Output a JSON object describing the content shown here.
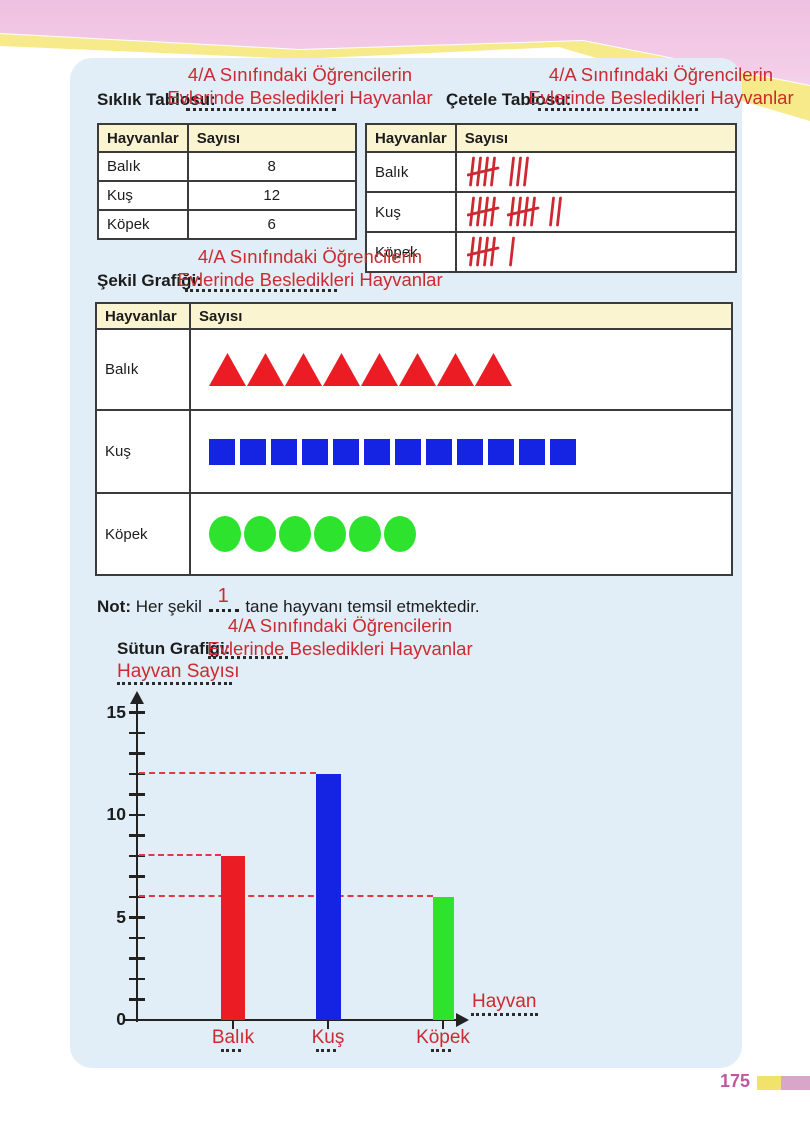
{
  "page": {
    "red_title_line1": "4/A Sınıfındaki Öğrencilerin",
    "red_title_line2": "Evlerinde Besledikleri Hayvanlar"
  },
  "sections": {
    "frequency_label": "Sıklık Tablosu:",
    "tally_label": "Çetele Tablosu:",
    "pictograph_label": "Şekil Grafiği:",
    "bar_label": "Sütun Grafiği:"
  },
  "table_headers": {
    "animals": "Hayvanlar",
    "count": "Sayısı"
  },
  "frequency_table": {
    "rows": [
      {
        "animal": "Balık",
        "value": "8"
      },
      {
        "animal": "Kuş",
        "value": "12"
      },
      {
        "animal": "Köpek",
        "value": "6"
      }
    ]
  },
  "tally_table": {
    "rows": [
      {
        "animal": "Balık",
        "count": 8,
        "groups": [
          5,
          3
        ]
      },
      {
        "animal": "Kuş",
        "count": 12,
        "groups": [
          5,
          5,
          2
        ]
      },
      {
        "animal": "Köpek",
        "count": 6,
        "groups": [
          5,
          1
        ]
      }
    ]
  },
  "pictograph": {
    "rows": [
      {
        "animal": "Balık",
        "shape": "triangle",
        "color": "#ec1c24",
        "count": 8
      },
      {
        "animal": "Kuş",
        "shape": "square",
        "color": "#1523e2",
        "count": 12
      },
      {
        "animal": "Köpek",
        "shape": "circle",
        "color": "#2de32d",
        "count": 6
      }
    ]
  },
  "note": {
    "prefix": "Not:",
    "before": "Her şekil",
    "answer": "1",
    "after": "tane hayvanı temsil etmektedir."
  },
  "chart_data": {
    "type": "bar",
    "title_line1": "4/A Sınıfındaki Öğrencilerin",
    "title_line2": "Evlerinde Besledikleri Hayvanlar",
    "ylabel": "Hayvan Sayısı",
    "xlabel": "Hayvan",
    "categories": [
      "Balık",
      "Kuş",
      "Köpek"
    ],
    "values": [
      8,
      12,
      6
    ],
    "bar_colors": [
      "#ec1c24",
      "#1523e2",
      "#2de32d"
    ],
    "yticks": [
      0,
      5,
      10,
      15
    ],
    "ylim": [
      0,
      16
    ],
    "tick_step": 1,
    "dashed_reference_lines": [
      8,
      12,
      6
    ],
    "grid": false,
    "legend": false
  },
  "footer": {
    "page_number": "175"
  },
  "colors": {
    "answer_red": "#cc2a30",
    "panel_blue": "#e1eef7",
    "header_cream": "#fbf4d1",
    "deco_pink": "#f2c9e6",
    "deco_yellow": "#f6e87e",
    "page_number_color": "#c0589c"
  }
}
